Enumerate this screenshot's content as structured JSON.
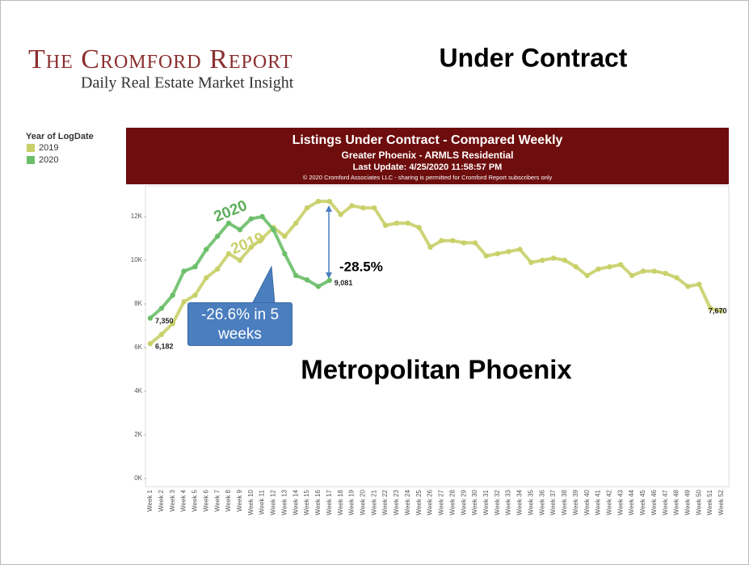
{
  "logo": {
    "name": "The Cromford Report",
    "tagline": "Daily Real Estate Market Insight"
  },
  "slide_title": "Under Contract",
  "chart_data": {
    "type": "line",
    "title": "Listings Under Contract - Compared Weekly",
    "subtitle": "Greater Phoenix - ARMLS Residential",
    "update": "Last Update: 4/25/2020 11:58:57 PM",
    "copyright": "© 2020 Cromford Associates LLC - sharing is permitted for Cromford Report subscribers only",
    "legend_title": "Year of LogDate",
    "annotations": {
      "region": "Metropolitan Phoenix",
      "drop_now": "-28.5%",
      "drop_5w": "-26.6% in 5 weeks",
      "label_2020": "2020",
      "label_2019": "2019"
    },
    "categories": [
      "Week 1",
      "Week 2",
      "Week 3",
      "Week 4",
      "Week 5",
      "Week 6",
      "Week 7",
      "Week 8",
      "Week 9",
      "Week 10",
      "Week 11",
      "Week 12",
      "Week 13",
      "Week 14",
      "Week 15",
      "Week 16",
      "Week 17",
      "Week 18",
      "Week 19",
      "Week 20",
      "Week 21",
      "Week 22",
      "Week 23",
      "Week 24",
      "Week 25",
      "Week 26",
      "Week 27",
      "Week 28",
      "Week 29",
      "Week 30",
      "Week 31",
      "Week 32",
      "Week 33",
      "Week 34",
      "Week 35",
      "Week 36",
      "Week 37",
      "Week 38",
      "Week 39",
      "Week 40",
      "Week 41",
      "Week 42",
      "Week 43",
      "Week 44",
      "Week 45",
      "Week 46",
      "Week 47",
      "Week 48",
      "Week 49",
      "Week 50",
      "Week 51",
      "Week 52"
    ],
    "series": [
      {
        "name": "2019",
        "color": "#c9d06a",
        "values": [
          6182,
          6600,
          7100,
          8100,
          8400,
          9200,
          9600,
          10300,
          10000,
          10600,
          11000,
          11500,
          11100,
          11700,
          12400,
          12700,
          12700,
          12100,
          12500,
          12400,
          12400,
          11600,
          11700,
          11700,
          11500,
          10600,
          10900,
          10900,
          10800,
          10800,
          10200,
          10300,
          10400,
          10500,
          9900,
          10000,
          10100,
          10000,
          9700,
          9300,
          9600,
          9700,
          9800,
          9300,
          9500,
          9500,
          9400,
          9200,
          8800,
          8900,
          7800,
          7670
        ],
        "value_labels": [
          "6,182",
          null,
          null,
          null,
          null,
          null,
          null,
          null,
          null,
          null,
          null,
          null,
          null,
          null,
          null,
          null,
          null,
          null,
          null,
          null,
          null,
          null,
          null,
          null,
          null,
          null,
          null,
          null,
          null,
          null,
          null,
          null,
          null,
          null,
          null,
          null,
          null,
          null,
          null,
          null,
          null,
          null,
          null,
          null,
          null,
          null,
          null,
          null,
          null,
          null,
          null,
          "7,670"
        ]
      },
      {
        "name": "2020",
        "color": "#6cbf6a",
        "values": [
          7350,
          7800,
          8400,
          9500,
          9700,
          10500,
          11100,
          11700,
          11400,
          11900,
          12000,
          11400,
          10300,
          9300,
          9100,
          8800,
          9081,
          null,
          null,
          null,
          null,
          null,
          null,
          null,
          null,
          null,
          null,
          null,
          null,
          null,
          null,
          null,
          null,
          null,
          null,
          null,
          null,
          null,
          null,
          null,
          null,
          null,
          null,
          null,
          null,
          null,
          null,
          null,
          null,
          null,
          null,
          null
        ],
        "value_labels": [
          "7,350",
          null,
          null,
          null,
          null,
          null,
          null,
          null,
          null,
          null,
          null,
          null,
          null,
          null,
          null,
          null,
          "9,081",
          null,
          null,
          null,
          null,
          null,
          null,
          null,
          null,
          null,
          null,
          null,
          null,
          null,
          null,
          null,
          null,
          null,
          null,
          null,
          null,
          null,
          null,
          null,
          null,
          null,
          null,
          null,
          null,
          null,
          null,
          null,
          null,
          null,
          null,
          null
        ]
      }
    ],
    "ylim": [
      0,
      13400
    ],
    "yticks": [
      {
        "value": 0,
        "label": "0K"
      },
      {
        "value": 2000,
        "label": "2K"
      },
      {
        "value": 4000,
        "label": "4K"
      },
      {
        "value": 6000,
        "label": "6K"
      },
      {
        "value": 8000,
        "label": "8K"
      },
      {
        "value": 10000,
        "label": "10K"
      },
      {
        "value": 12000,
        "label": "12K"
      }
    ],
    "grid": false
  }
}
